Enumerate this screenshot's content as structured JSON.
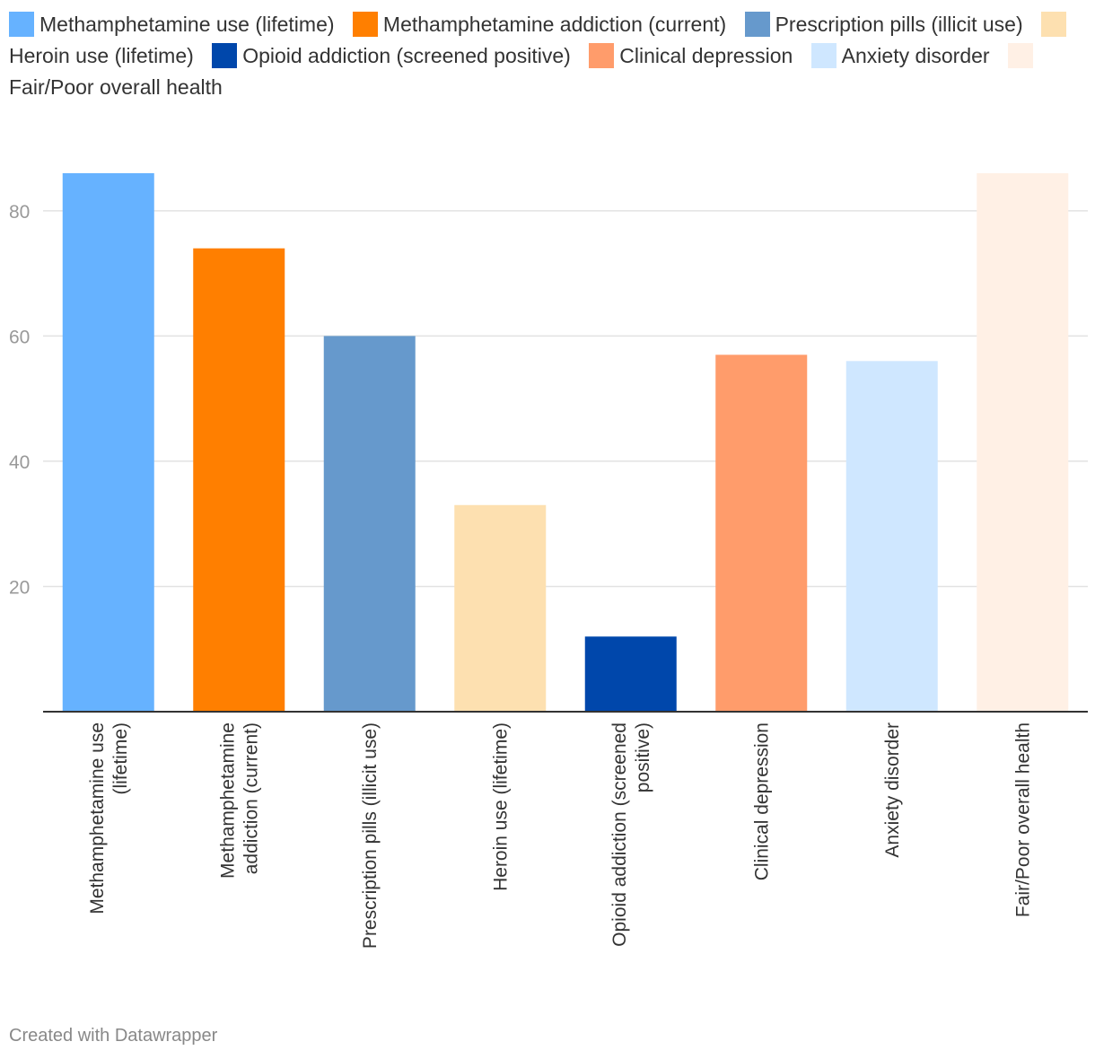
{
  "chart_data": {
    "type": "bar",
    "title": "",
    "xlabel": "",
    "ylabel": "",
    "ylim": [
      0,
      86
    ],
    "yticks": [
      20,
      40,
      60,
      80
    ],
    "grid": true,
    "legend_position": "top",
    "categories": [
      "Methamphetamine use (lifetime)",
      "Methamphetamine addiction (current)",
      "Prescription pills (illicit use)",
      "Heroin use (lifetime)",
      "Opioid addiction (screened positive)",
      "Clinical depression",
      "Anxiety disorder",
      "Fair/Poor overall health"
    ],
    "tick_labels": [
      [
        "Methamphetamine use",
        "(lifetime)"
      ],
      [
        "Methamphetamine",
        "addiction (current)"
      ],
      [
        "Prescription pills (illicit use)"
      ],
      [
        "Heroin use (lifetime)"
      ],
      [
        "Opioid addiction (screened",
        "positive)"
      ],
      [
        "Clinical depression"
      ],
      [
        "Anxiety disorder"
      ],
      [
        "Fair/Poor overall health"
      ]
    ],
    "values": [
      86,
      74,
      60,
      33,
      12,
      57,
      56,
      86
    ],
    "colors": [
      "#66b2ff",
      "#ff7f00",
      "#6699cc",
      "#fde0b0",
      "#0047ab",
      "#ff9c6b",
      "#cfe7ff",
      "#fff0e5"
    ]
  },
  "footer": {
    "credit": "Created with Datawrapper"
  }
}
